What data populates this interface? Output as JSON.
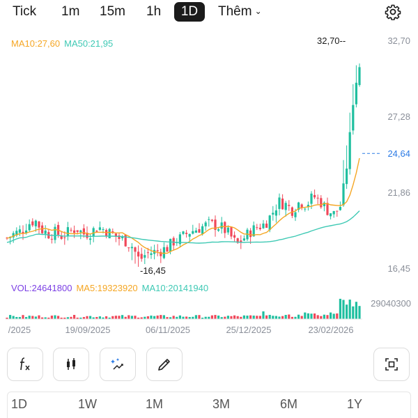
{
  "tabs": [
    {
      "label": "Tick",
      "active": false
    },
    {
      "label": "1m",
      "active": false
    },
    {
      "label": "15m",
      "active": false
    },
    {
      "label": "1h",
      "active": false
    },
    {
      "label": "1D",
      "active": true
    },
    {
      "label": "Thêm",
      "active": false
    }
  ],
  "legend": {
    "ma10": "MA10:27,60",
    "ma50": "MA50:21,95"
  },
  "volume_legend": {
    "vol": "VOL:24641800",
    "ma5": "MA5:19323920",
    "ma10": "MA10:20141940"
  },
  "colors": {
    "up": "#1fbf9f",
    "down": "#f0485a",
    "ma10": "#f5a623",
    "ma50": "#3ec9b4",
    "current": "#2c7be5",
    "vol_legend": "#7b3fe4",
    "ma5_legend": "#f5a623",
    "ma10_vol_legend": "#3ec9b4"
  },
  "chart_data": {
    "type": "candlestick",
    "y_axis_labels": [
      "32,70",
      "27,28",
      "24,64",
      "21,86",
      "16,45"
    ],
    "x_axis_labels": [
      "/2025",
      "19/09/2025",
      "06/11/2025",
      "25/12/2025",
      "23/02/2026"
    ],
    "max_label": "32,70",
    "min_label": "16,45",
    "current_price": "24,64",
    "volume_max_label": "29040300",
    "ylim": [
      16.45,
      32.7
    ]
  },
  "ranges": [
    "1D",
    "1W",
    "1M",
    "3M",
    "6M",
    "1Y"
  ],
  "tools": [
    "indicator-fx-icon",
    "candlestick-icon",
    "magic-tool-icon",
    "draw-pen-icon",
    "fullscreen-icon"
  ]
}
